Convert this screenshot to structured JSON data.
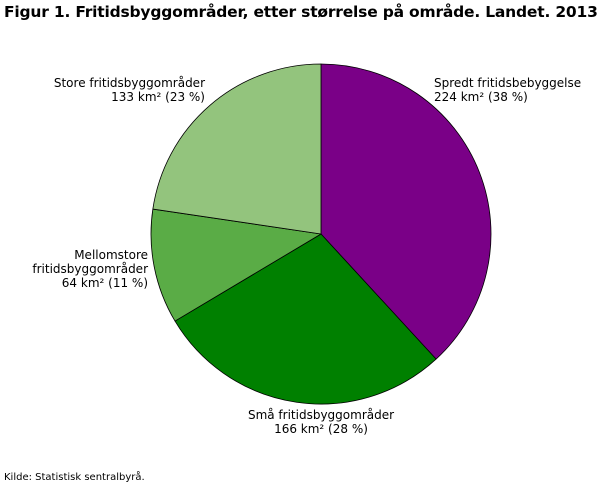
{
  "title": "Figur 1. Fritidsbyggområder, etter størrelse på område. Landet. 2013",
  "source": "Kilde: Statistisk sentralbyrå.",
  "chart_data": {
    "type": "pie",
    "title": "Figur 1. Fritidsbyggområder, etter størrelse på område. Landet. 2013",
    "unit": "km²",
    "slices": [
      {
        "label": "Spredt fritidsbebyggelse",
        "value": 224,
        "percent": 38,
        "value_text": "224 km² (38 %)",
        "color": "#7a0087"
      },
      {
        "label": "Små fritidsbyggområder",
        "value": 166,
        "percent": 28,
        "value_text": "166 km² (28 %)",
        "color": "#008000"
      },
      {
        "label": "Mellomstore fritidsbyggområder",
        "label_lines": [
          "Mellomstore",
          "fritidsbyggområder"
        ],
        "value": 64,
        "percent": 11,
        "value_text": "64 km² (11 %)",
        "color": "#5aac46"
      },
      {
        "label": "Store fritidsbyggområder",
        "value": 133,
        "percent": 23,
        "value_text": "133 km² (23 %)",
        "color": "#93c47d"
      }
    ],
    "start_angle": "12 o'clock",
    "direction": "clockwise",
    "legend": "none",
    "grid": false
  }
}
